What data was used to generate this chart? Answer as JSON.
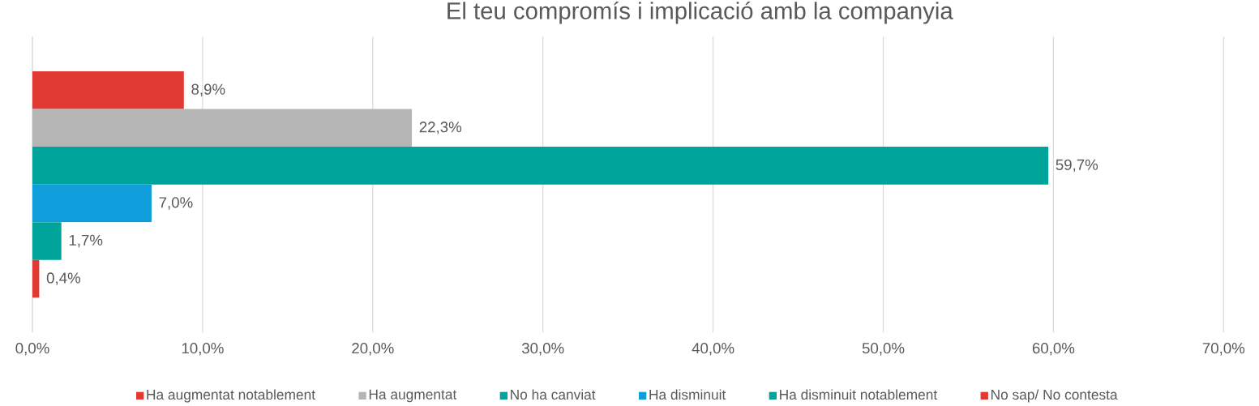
{
  "chart_data": {
    "type": "bar",
    "orientation": "horizontal",
    "title": "El teu compromís i implicació amb la companyia",
    "categories": [
      null
    ],
    "series": [
      {
        "name": "Ha augmentat notablement",
        "color": "#e03a33",
        "values": [
          8.9
        ],
        "value_labels": [
          "8,9%"
        ]
      },
      {
        "name": "Ha augmentat",
        "color": "#b5b5b6",
        "values": [
          22.3
        ],
        "value_labels": [
          "22,3%"
        ]
      },
      {
        "name": "No ha canviat",
        "color": "#00a49a",
        "values": [
          59.7
        ],
        "value_labels": [
          "59,7%"
        ]
      },
      {
        "name": "Ha disminuit",
        "color": "#0f9edb",
        "values": [
          7.0
        ],
        "value_labels": [
          "7,0%"
        ]
      },
      {
        "name": "Ha disminuit notablement",
        "color": "#00a49a",
        "values": [
          1.7
        ],
        "value_labels": [
          "1,7%"
        ]
      },
      {
        "name": "No sap/ No contesta",
        "color": "#e03a33",
        "values": [
          0.4
        ],
        "value_labels": [
          "0,4%"
        ]
      }
    ],
    "xlim": [
      0,
      70
    ],
    "xticks": [
      {
        "value": 0,
        "label": "0,0%"
      },
      {
        "value": 10,
        "label": "10,0%"
      },
      {
        "value": 20,
        "label": "20,0%"
      },
      {
        "value": 30,
        "label": "30,0%"
      },
      {
        "value": 40,
        "label": "40,0%"
      },
      {
        "value": 50,
        "label": "50,0%"
      },
      {
        "value": 60,
        "label": "60,0%"
      },
      {
        "value": 70,
        "label": "70,0%"
      }
    ],
    "grid": "x",
    "legend": "bottom"
  }
}
